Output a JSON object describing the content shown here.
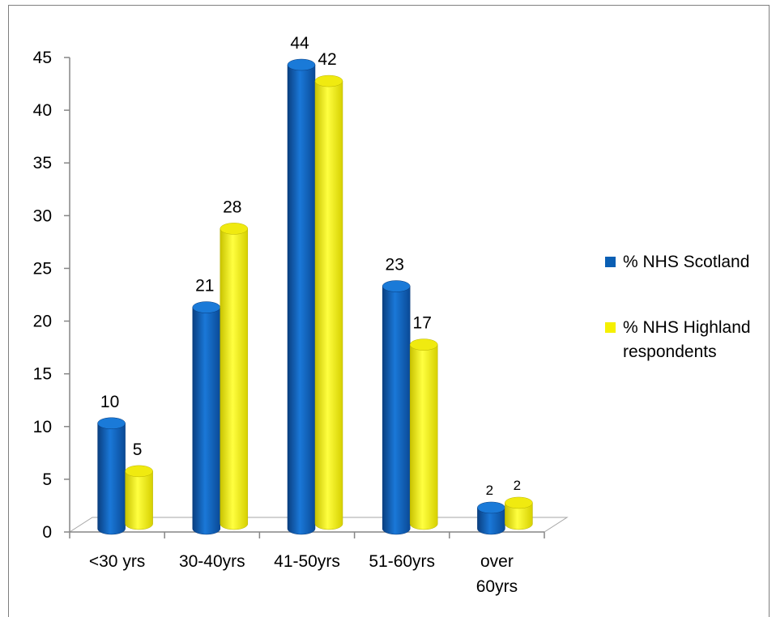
{
  "chart_data": {
    "type": "bar",
    "style": "3d-cylinder",
    "title": "",
    "xlabel": "",
    "ylabel": "",
    "ylim": [
      0,
      45
    ],
    "yticks": [
      0,
      5,
      10,
      15,
      20,
      25,
      30,
      35,
      40,
      45
    ],
    "grid": false,
    "legend_position": "right",
    "categories": [
      [
        "<30 yrs"
      ],
      [
        "30-40yrs"
      ],
      [
        "41-50yrs"
      ],
      [
        "51-60yrs"
      ],
      [
        "over",
        "60yrs"
      ]
    ],
    "series": [
      {
        "name": "% NHS Scotland",
        "color": "#0a5fb4",
        "values": [
          10,
          21,
          44,
          23,
          2
        ]
      },
      {
        "name": "% NHS Highland respondents",
        "color": "#f5f000",
        "values": [
          5,
          28,
          42,
          17,
          2
        ]
      }
    ],
    "legend": [
      {
        "lines": [
          "% NHS Scotland"
        ]
      },
      {
        "lines": [
          "% NHS Highland",
          "respondents"
        ]
      }
    ]
  }
}
